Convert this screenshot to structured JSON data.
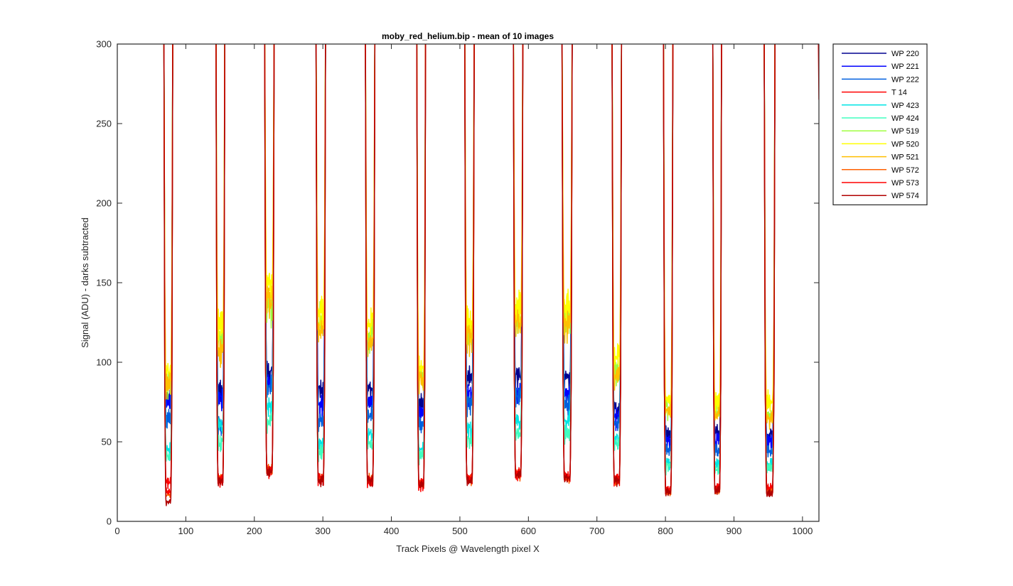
{
  "chart_data": {
    "type": "line",
    "title": "moby_red_helium.bip - mean of 10 images",
    "xlabel": "Track Pixels @ Wavelength pixel X",
    "ylabel": "Signal (ADU) - darks subtracted",
    "xlim": [
      0,
      1024
    ],
    "ylim": [
      0,
      300
    ],
    "xticks": [
      0,
      100,
      200,
      300,
      400,
      500,
      600,
      700,
      800,
      900,
      1000
    ],
    "yticks": [
      0,
      50,
      100,
      150,
      200,
      250,
      300
    ],
    "grid": false,
    "legend_position": "outside-top-right",
    "tracks": [
      {
        "left": 68,
        "right": 81,
        "minima": [
          66,
          65,
          55,
          20,
          38,
          34,
          76,
          82,
          75,
          13,
          15,
          9
        ]
      },
      {
        "left": 144,
        "right": 157,
        "minima": [
          71,
          67,
          52,
          21,
          51,
          42,
          99,
          108,
          93,
          23,
          22,
          21
        ]
      },
      {
        "left": 215,
        "right": 229,
        "minima": [
          81,
          75,
          74,
          26,
          63,
          55,
          119,
          131,
          121,
          27,
          27,
          26
        ]
      },
      {
        "left": 290,
        "right": 304,
        "minima": [
          71,
          63,
          55,
          21,
          42,
          37,
          111,
          115,
          103,
          22,
          23,
          21
        ]
      },
      {
        "left": 362,
        "right": 376,
        "minima": [
          73,
          63,
          58,
          20,
          47,
          40,
          102,
          110,
          97,
          22,
          21,
          21
        ]
      },
      {
        "left": 437,
        "right": 450,
        "minima": [
          64,
          58,
          52,
          18,
          39,
          35,
          81,
          85,
          78,
          19,
          20,
          19
        ]
      },
      {
        "left": 507,
        "right": 521,
        "minima": [
          78,
          69,
          64,
          22,
          50,
          43,
          104,
          110,
          101,
          22,
          23,
          21
        ]
      },
      {
        "left": 578,
        "right": 592,
        "minima": [
          79,
          71,
          67,
          24,
          54,
          47,
          111,
          118,
          107,
          25,
          25,
          24
        ]
      },
      {
        "left": 649,
        "right": 664,
        "minima": [
          79,
          69,
          64,
          22,
          55,
          47,
          111,
          118,
          107,
          23,
          23,
          22
        ]
      },
      {
        "left": 722,
        "right": 736,
        "minima": [
          60,
          56,
          53,
          21,
          45,
          42,
          83,
          89,
          81,
          21,
          22,
          21
        ]
      },
      {
        "left": 797,
        "right": 811,
        "minima": [
          47,
          43,
          38,
          15,
          31,
          29,
          62,
          67,
          60,
          15,
          16,
          15
        ]
      },
      {
        "left": 869,
        "right": 882,
        "minima": [
          48,
          43,
          38,
          17,
          30,
          27,
          60,
          66,
          58,
          16,
          17,
          16
        ]
      },
      {
        "left": 944,
        "right": 960,
        "minima": [
          47,
          43,
          38,
          16,
          30,
          28,
          58,
          65,
          56,
          15,
          17,
          14
        ]
      }
    ],
    "series": [
      {
        "name": "WP 220",
        "color": "#00008f"
      },
      {
        "name": "WP 221",
        "color": "#0000ff"
      },
      {
        "name": "WP 222",
        "color": "#0060df"
      },
      {
        "name": "T 14",
        "color": "#ff0000"
      },
      {
        "name": "WP 423",
        "color": "#00e4e4"
      },
      {
        "name": "WP 424",
        "color": "#40ffbf"
      },
      {
        "name": "WP 519",
        "color": "#a0ff40"
      },
      {
        "name": "WP 520",
        "color": "#ffff00"
      },
      {
        "name": "WP 521",
        "color": "#ffbf00"
      },
      {
        "name": "WP 572",
        "color": "#ff6000"
      },
      {
        "name": "WP 573",
        "color": "#ff0000"
      },
      {
        "name": "WP 574",
        "color": "#b00000"
      }
    ]
  }
}
